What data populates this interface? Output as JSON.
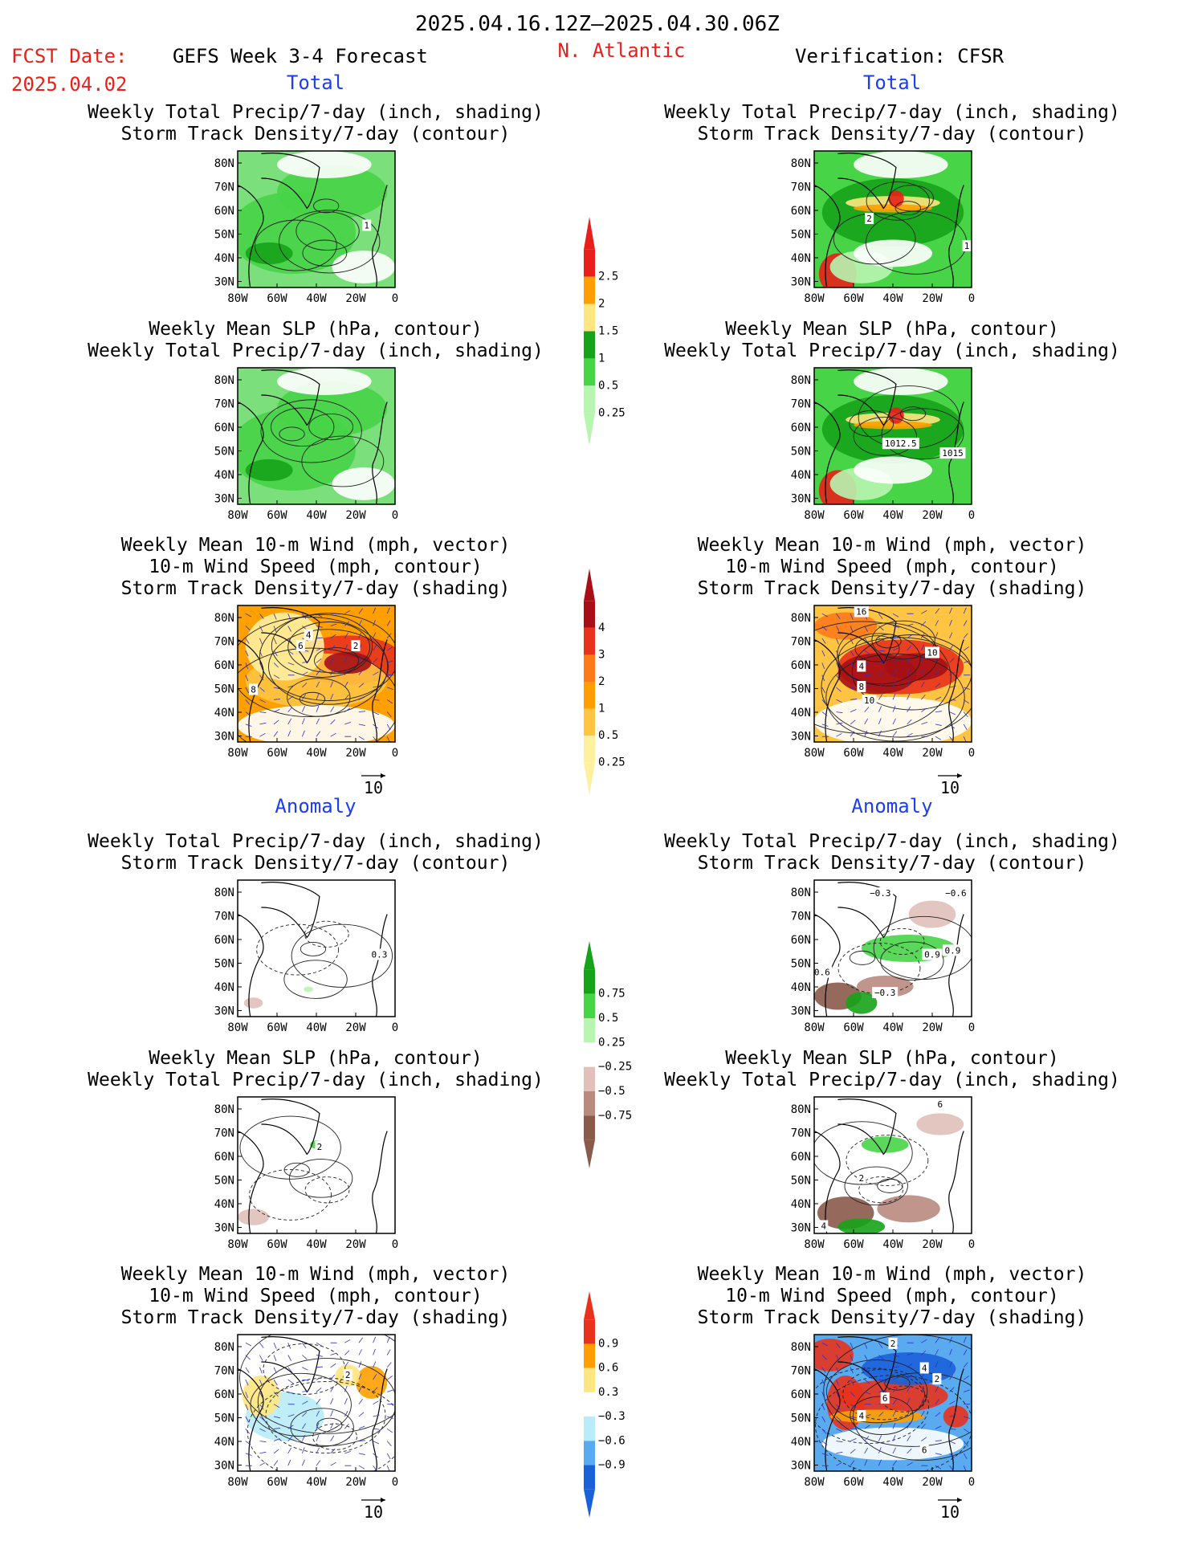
{
  "header": {
    "date_range": "2025.04.16.12Z–2025.04.30.06Z",
    "fcst_label": "FCST Date:",
    "fcst_date": "2025.04.02",
    "forecast_title": "GEFS Week 3-4 Forecast",
    "region": "N. Atlantic",
    "verification": "Verification: CFSR",
    "section_total": "Total",
    "section_anomaly": "Anomaly"
  },
  "titles": {
    "precip_storm": [
      "Weekly Total Precip/7-day (inch, shading)",
      "Storm Track Density/7-day (contour)"
    ],
    "slp_precip": [
      "Weekly Mean SLP (hPa, contour)",
      "Weekly Total Precip/7-day (inch, shading)"
    ],
    "wind_storm": [
      "Weekly Mean 10-m Wind (mph, vector)",
      "10-m Wind Speed (mph, contour)",
      "Storm Track Density/7-day (shading)"
    ]
  },
  "axes": {
    "lat_labels": [
      "80N",
      "70N",
      "60N",
      "50N",
      "40N",
      "30N"
    ],
    "lon_labels": [
      "80W",
      "60W",
      "40W",
      "20W",
      "0"
    ]
  },
  "vector_reference": "10",
  "colorbars": {
    "precip_total": {
      "labels": [
        "2.5",
        "2",
        "1.5",
        "1",
        "0.5",
        "0.25"
      ],
      "colors": [
        "#e81f1a",
        "#ff9f00",
        "#ffe680",
        "#16a31a",
        "#47d447",
        "#b8f5b0"
      ]
    },
    "storm_total": {
      "labels": [
        "4",
        "3",
        "2",
        "1",
        "0.5",
        "0.25"
      ],
      "colors": [
        "#a50f15",
        "#e8321c",
        "#fd7a18",
        "#ff9f00",
        "#ffc442",
        "#fff0a0"
      ]
    },
    "precip_anom": {
      "labels": [
        "0.75",
        "0.5",
        "0.25",
        "−0.25",
        "−0.5",
        "−0.75"
      ],
      "colors": [
        "#16a31a",
        "#47d447",
        "#b8f5b0",
        "#ffffff",
        "#e0c0b8",
        "#b88a80",
        "#8a5a4a"
      ]
    },
    "storm_anom": {
      "labels": [
        "0.9",
        "0.6",
        "0.3",
        "−0.3",
        "−0.6",
        "−0.9"
      ],
      "colors": [
        "#e8321c",
        "#ff9f00",
        "#ffe680",
        "#ffffff",
        "#b8ecf8",
        "#5aaaf0",
        "#1a60d8"
      ]
    }
  },
  "chart_data": [
    {
      "type": "heatmap",
      "panel": "gefs-total-precip-storm",
      "title": "Weekly Total Precip/7-day (inch, shading) / Storm Track Density/7-day (contour)",
      "contour_labels": [
        "1"
      ]
    },
    {
      "type": "heatmap",
      "panel": "cfsr-total-precip-storm",
      "title": "Weekly Total Precip/7-day (inch, shading) / Storm Track Density/7-day (contour)",
      "contour_labels": [
        "2",
        "1"
      ]
    },
    {
      "type": "heatmap",
      "panel": "gefs-total-slp-precip",
      "title": "Weekly Mean SLP (hPa, contour) / Weekly Total Precip/7-day (inch, shading)",
      "contour_labels": []
    },
    {
      "type": "heatmap",
      "panel": "cfsr-total-slp-precip",
      "title": "Weekly Mean SLP (hPa, contour) / Weekly Total Precip/7-day (inch, shading)",
      "contour_labels": [
        "1012.5",
        "1015"
      ]
    },
    {
      "type": "heatmap",
      "panel": "gefs-total-wind-storm",
      "title": "Weekly Mean 10-m Wind (mph, vector) / 10-m Wind Speed (mph, contour) / Storm Track Density/7-day (shading)",
      "contour_labels": [
        "8",
        "6",
        "4",
        "2"
      ]
    },
    {
      "type": "heatmap",
      "panel": "cfsr-total-wind-storm",
      "title": "Weekly Mean 10-m Wind (mph, vector) / 10-m Wind Speed (mph, contour) / Storm Track Density/7-day (shading)",
      "contour_labels": [
        "16",
        "10",
        "4",
        "8",
        "10"
      ]
    },
    {
      "type": "heatmap",
      "panel": "gefs-anom-precip-storm",
      "title": "Weekly Total Precip/7-day (inch, shading) / Storm Track Density/7-day (contour)",
      "contour_labels": [
        "0.3"
      ]
    },
    {
      "type": "heatmap",
      "panel": "cfsr-anom-precip-storm",
      "title": "Weekly Total Precip/7-day (inch, shading) / Storm Track Density/7-day (contour)",
      "contour_labels": [
        "−0.3",
        "−0.6",
        "0.9",
        "0.9",
        "0.6",
        "−0.3"
      ]
    },
    {
      "type": "heatmap",
      "panel": "gefs-anom-slp-precip",
      "title": "Weekly Mean SLP (hPa, contour) / Weekly Total Precip/7-day (inch, shading)",
      "contour_labels": [
        "2"
      ]
    },
    {
      "type": "heatmap",
      "panel": "cfsr-anom-slp-precip",
      "title": "Weekly Mean SLP (hPa, contour) / Weekly Total Precip/7-day (inch, shading)",
      "contour_labels": [
        "6",
        "2",
        "4"
      ]
    },
    {
      "type": "heatmap",
      "panel": "gefs-anom-wind-storm",
      "title": "Weekly Mean 10-m Wind (mph, vector) / 10-m Wind Speed (mph, contour) / Storm Track Density/7-day (shading)",
      "contour_labels": [
        "2"
      ]
    },
    {
      "type": "heatmap",
      "panel": "cfsr-anom-wind-storm",
      "title": "Weekly Mean 10-m Wind (mph, vector) / 10-m Wind Speed (mph, contour) / Storm Track Density/7-day (shading)",
      "contour_labels": [
        "2",
        "4",
        "2",
        "6",
        "4",
        "6"
      ]
    }
  ]
}
